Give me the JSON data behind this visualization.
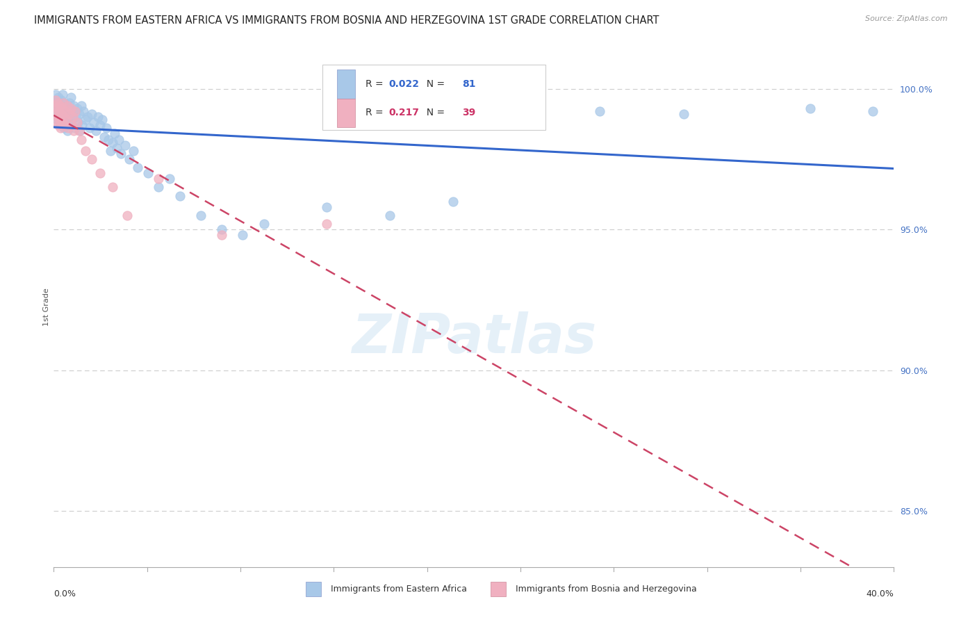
{
  "title": "IMMIGRANTS FROM EASTERN AFRICA VS IMMIGRANTS FROM BOSNIA AND HERZEGOVINA 1ST GRADE CORRELATION CHART",
  "source": "Source: ZipAtlas.com",
  "ylabel_label": "1st Grade",
  "right_yticks": [
    85.0,
    90.0,
    95.0,
    100.0
  ],
  "legend_blue_label": "Immigrants from Eastern Africa",
  "legend_pink_label": "Immigrants from Bosnia and Herzegovina",
  "R_blue": 0.022,
  "N_blue": 81,
  "R_pink": 0.217,
  "N_pink": 39,
  "blue_color": "#a8c8e8",
  "pink_color": "#f0b0c0",
  "blue_line_color": "#3366cc",
  "pink_line_color": "#cc4466",
  "blue_scatter_x": [
    0.05,
    0.08,
    0.1,
    0.12,
    0.15,
    0.17,
    0.2,
    0.22,
    0.25,
    0.28,
    0.3,
    0.32,
    0.35,
    0.38,
    0.4,
    0.42,
    0.45,
    0.48,
    0.5,
    0.52,
    0.55,
    0.58,
    0.6,
    0.62,
    0.65,
    0.68,
    0.7,
    0.72,
    0.75,
    0.78,
    0.8,
    0.85,
    0.9,
    0.95,
    1.0,
    1.05,
    1.1,
    1.15,
    1.2,
    1.25,
    1.3,
    1.35,
    1.4,
    1.5,
    1.6,
    1.7,
    1.8,
    1.9,
    2.0,
    2.1,
    2.2,
    2.3,
    2.4,
    2.5,
    2.6,
    2.7,
    2.8,
    2.9,
    3.0,
    3.1,
    3.2,
    3.4,
    3.6,
    3.8,
    4.0,
    4.5,
    5.0,
    5.5,
    6.0,
    7.0,
    8.0,
    9.0,
    10.0,
    13.0,
    16.0,
    19.0,
    22.0,
    26.0,
    30.0,
    36.0,
    39.0
  ],
  "blue_scatter_y": [
    99.5,
    99.3,
    99.8,
    99.1,
    99.6,
    98.9,
    99.4,
    99.7,
    99.0,
    99.5,
    98.8,
    99.2,
    99.6,
    98.7,
    99.3,
    99.8,
    99.1,
    98.6,
    99.5,
    99.0,
    98.9,
    99.4,
    98.7,
    99.2,
    98.5,
    99.0,
    99.3,
    98.8,
    99.5,
    99.1,
    99.7,
    98.9,
    99.2,
    99.4,
    98.6,
    99.0,
    99.3,
    98.8,
    99.1,
    98.5,
    99.4,
    98.7,
    99.2,
    98.9,
    99.0,
    98.6,
    99.1,
    98.8,
    98.5,
    99.0,
    98.7,
    98.9,
    98.3,
    98.6,
    98.2,
    97.8,
    98.1,
    98.4,
    97.9,
    98.2,
    97.7,
    98.0,
    97.5,
    97.8,
    97.2,
    97.0,
    96.5,
    96.8,
    96.2,
    95.5,
    95.0,
    94.8,
    95.2,
    95.8,
    95.5,
    96.0,
    99.0,
    99.2,
    99.1,
    99.3,
    99.2
  ],
  "pink_scatter_x": [
    0.05,
    0.08,
    0.1,
    0.12,
    0.15,
    0.18,
    0.2,
    0.22,
    0.25,
    0.28,
    0.3,
    0.33,
    0.36,
    0.4,
    0.42,
    0.45,
    0.48,
    0.5,
    0.55,
    0.6,
    0.65,
    0.7,
    0.75,
    0.8,
    0.85,
    0.9,
    0.95,
    1.0,
    1.1,
    1.2,
    1.3,
    1.5,
    1.8,
    2.2,
    2.8,
    3.5,
    5.0,
    8.0,
    13.0
  ],
  "pink_scatter_y": [
    99.4,
    99.1,
    99.6,
    98.8,
    99.3,
    99.0,
    99.5,
    98.7,
    99.2,
    98.9,
    99.4,
    98.6,
    99.1,
    99.3,
    98.8,
    99.5,
    99.0,
    98.7,
    99.2,
    98.9,
    99.4,
    98.6,
    99.1,
    99.3,
    98.7,
    99.0,
    98.5,
    99.2,
    98.8,
    98.5,
    98.2,
    97.8,
    97.5,
    97.0,
    96.5,
    95.5,
    96.8,
    94.8,
    95.2
  ],
  "xmin": 0.0,
  "xmax": 40.0,
  "ymin": 83.0,
  "ymax": 101.5,
  "background_color": "#ffffff",
  "grid_color": "#cccccc",
  "title_fontsize": 10.5,
  "axis_label_fontsize": 8,
  "tick_fontsize": 9,
  "watermark_text": "ZIPatlas",
  "watermark_color": "#d0e4f4",
  "watermark_alpha": 0.55
}
